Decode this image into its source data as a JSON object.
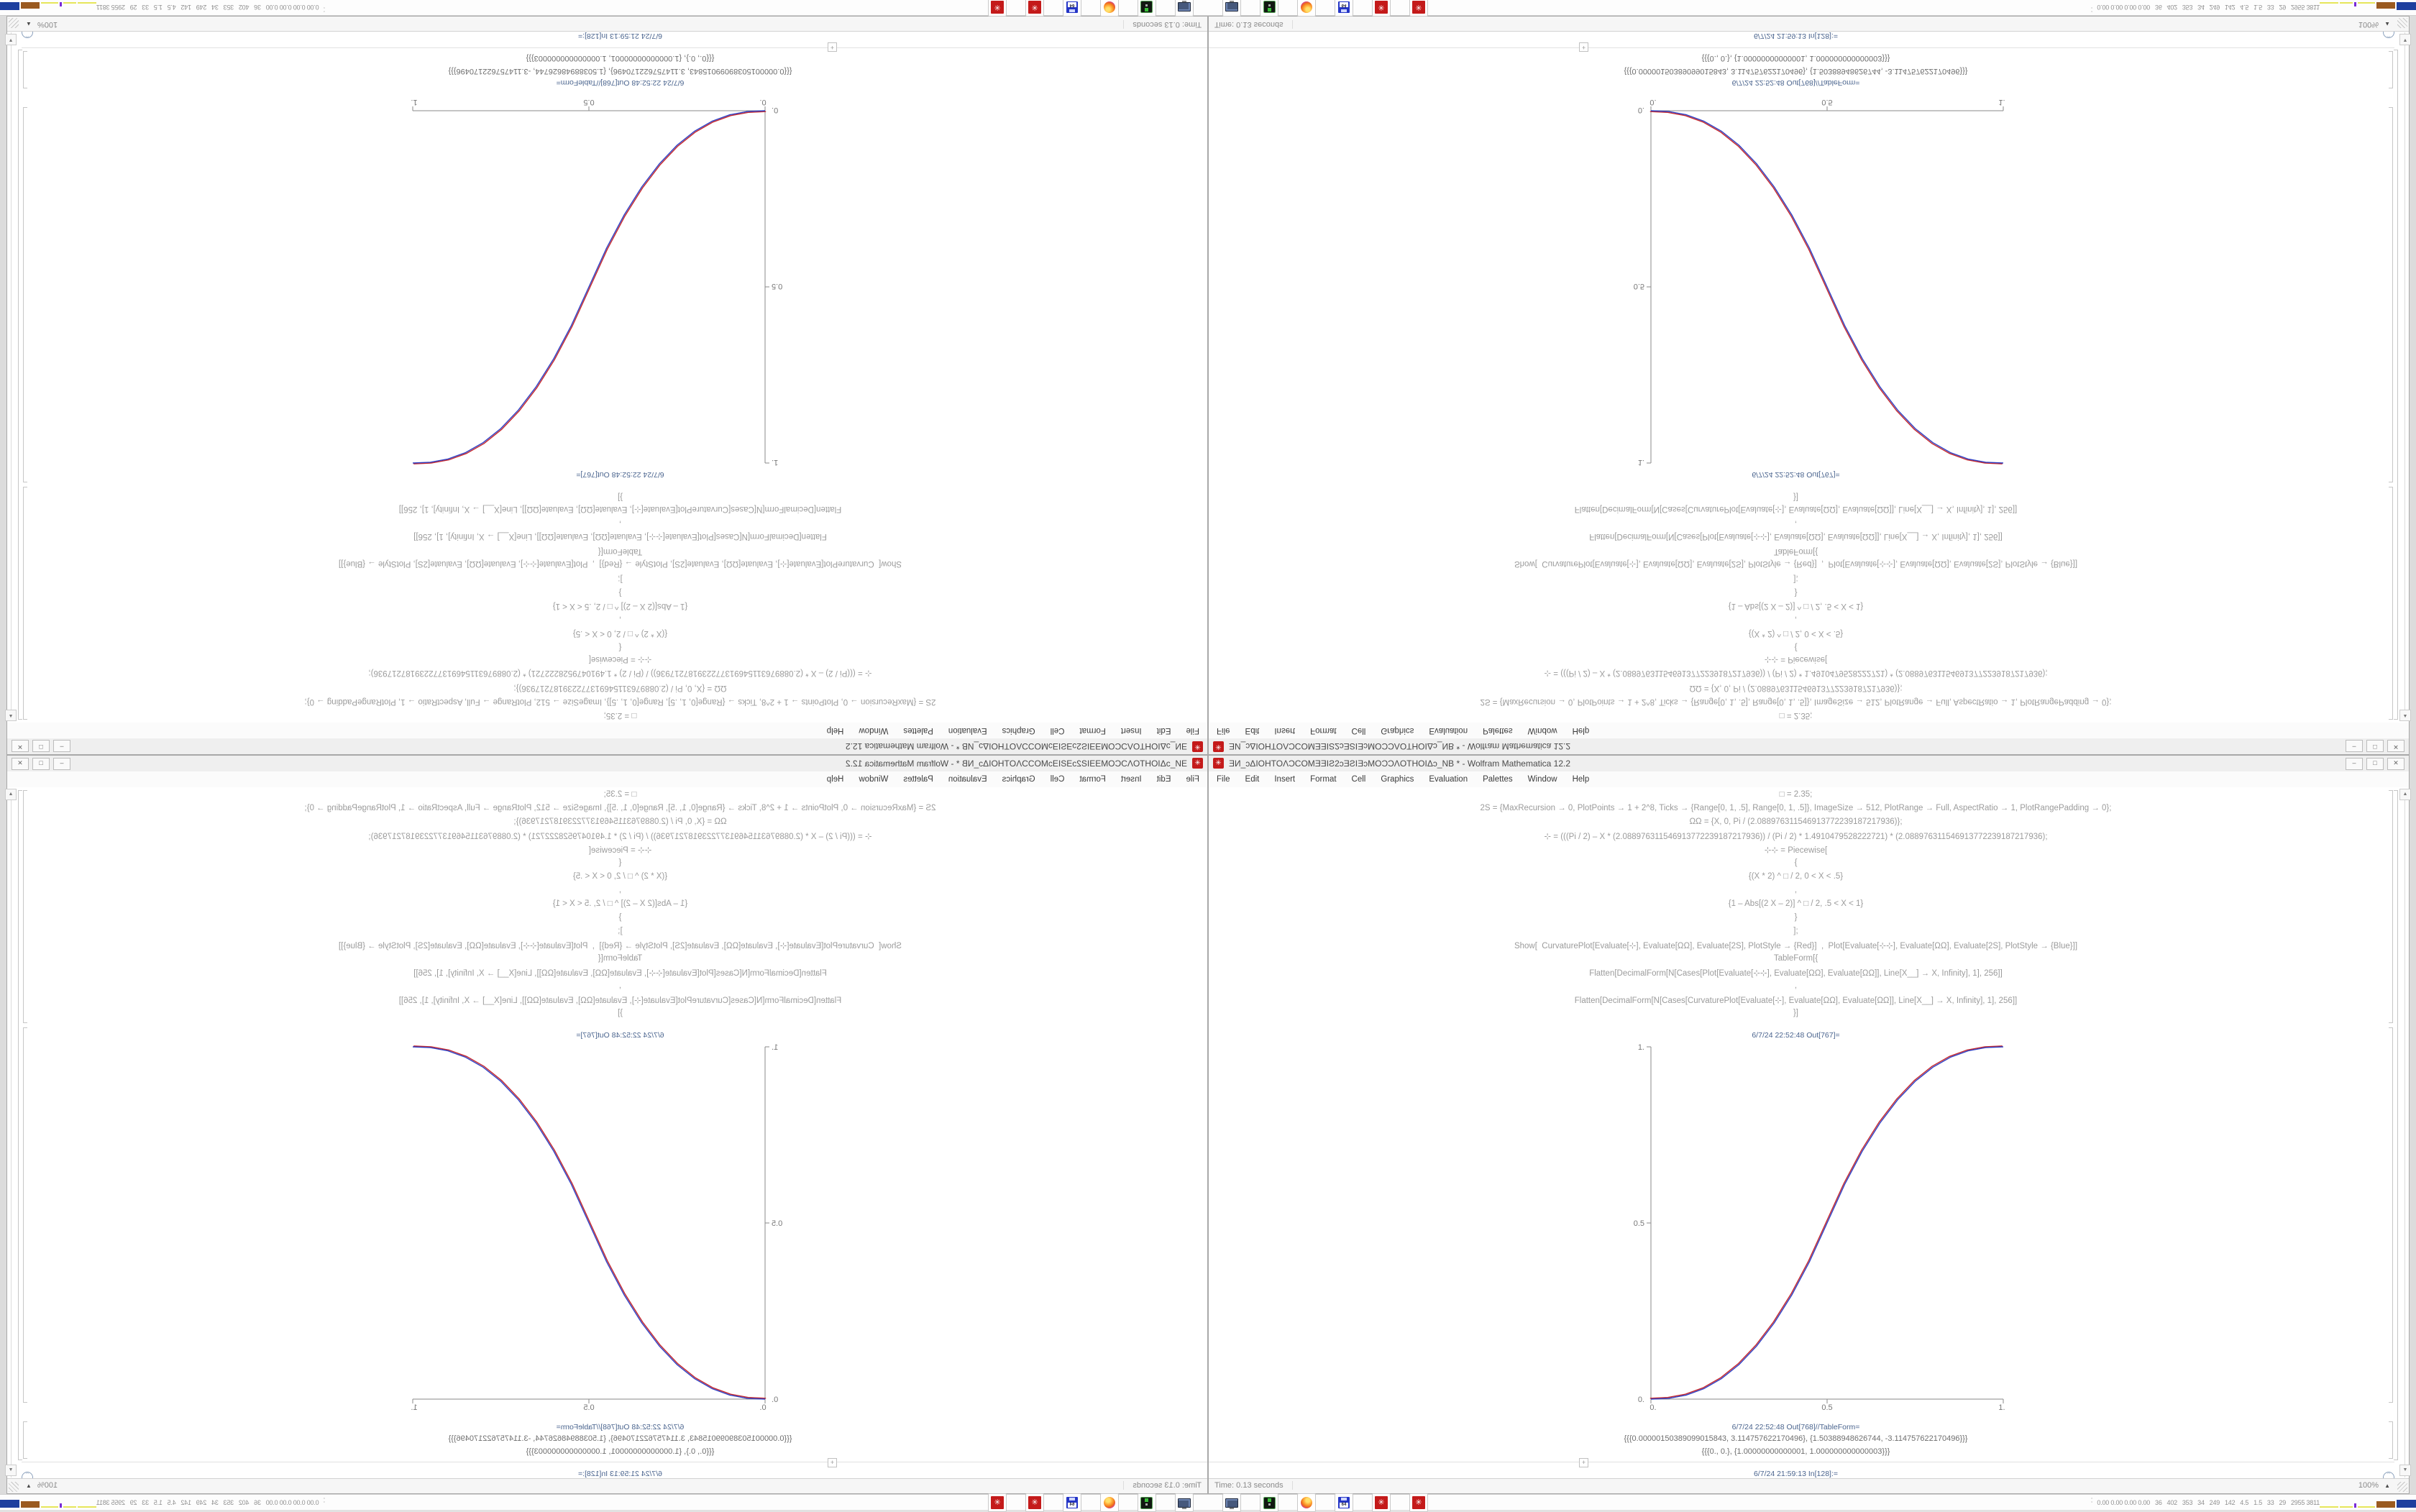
{
  "window": {
    "title": "ƎИ_ɔΔIOHTOΛƆCOMƎƎIƧ2ɔƎƧIƎɔMOƆƆΛOTHOIΔɔ_NB * - Wolfram Mathematica 12.2",
    "app_icon_glyph": "✳",
    "menu_items": [
      "File",
      "Edit",
      "Insert",
      "Format",
      "Cell",
      "Graphics",
      "Evaluation",
      "Palettes",
      "Window",
      "Help"
    ],
    "buttons": {
      "minimize": "–",
      "maximize": "□",
      "close": "✕"
    },
    "notebook": {
      "input_lines": [
        "□ = 2.35;",
        "2S = {MaxRecursion → 0, PlotPoints → 1 + 2^8, Ticks → {Range[0, 1, .5], Range[0, 1, .5]}, ImageSize → 512, PlotRange → Full, AspectRatio → 1, PlotRangePadding → 0};",
        "ΩΩ = {X, 0, Pi / (2.088976311546913772239187217936)};",
        "⊹ = (((Pi / 2) – X * (2.088976311546913772239187217936)) / (Pi / 2) * 1.4910479528222721) * (2.088976311546913772239187217936);",
        "⊹⊹ = Piecewise[",
        "{",
        "{(X * 2) ^ □ / 2, 0 < X < .5}",
        ",",
        "{1 – Abs[(2 X – 2)] ^ □ / 2, .5 < X < 1}",
        "}",
        "];",
        "Show[  CurvaturePlot[Evaluate[⊹], Evaluate[ΩΩ], Evaluate[2S], PlotStyle → {Red}]  ,  Plot[Evaluate[⊹⊹], Evaluate[ΩΩ], Evaluate[2S], PlotStyle → {Blue}]]",
        "TableForm[{",
        "Flatten[DecimalForm[N[Cases[Plot[Evaluate[⊹⊹], Evaluate[ΩΩ], Evaluate[ΩΩ]], Line[X__] → X, Infinity], 1], 256]]",
        ",",
        "Flatten[DecimalForm[N[Cases[CurvaturePlot[Evaluate[⊹], Evaluate[ΩΩ], Evaluate[ΩΩ]], Line[X__] → X, Infinity], 1], 256]]",
        "}]"
      ],
      "out_plot_label": "6/7/24 22:52:48 Out[767]=",
      "out_table_label": "6/7/24 22:52:48 Out[768]//TableForm=",
      "table_rows": [
        "{{{0.00000150389099015843, 3.114757622170496}, {1.50388948626744, -3.114757622170496}}}",
        "{{{0., 0.}, {1.00000000000001, 1.000000000000003}}}",
        ""
      ],
      "in_label": "6/7/24 21:59:13 In[128]:=",
      "insert_plus": "+",
      "scroll_up_glyph": "▲",
      "scroll_down_glyph": "▼",
      "elision_glyph": "ˇˇ"
    },
    "status": {
      "time": "Time: 0.13 seconds",
      "zoom": "100%",
      "zoom_arrow": "▲"
    }
  },
  "taskbar": {
    "icons": [
      {
        "name": "display-settings-icon",
        "kind": "monitor",
        "label": ""
      },
      {
        "name": "terminal-icon",
        "kind": "terminal",
        "label": ""
      },
      {
        "name": "firefox-icon",
        "kind": "firefox",
        "label": ""
      },
      {
        "name": "floppy-64-icon",
        "kind": "floppy",
        "label": "64"
      },
      {
        "name": "mathematica-icon",
        "kind": "mathematica",
        "label": "✳"
      },
      {
        "name": "mathematica-icon",
        "kind": "mathematica",
        "label": "✳"
      }
    ],
    "updown_glyphs": [
      "ˆ",
      "ˇ"
    ],
    "monitor_text": "0.00 0.00 0.00 0.00   36   402   353   34   249   142   4.5   1.5   33   29   2955 3811",
    "graph_segments": [
      {
        "color": "#e6e65a",
        "w": 26,
        "h": 2
      },
      {
        "color": "#e6e65a",
        "w": 18,
        "h": 2
      },
      {
        "color": "#7a2bd6",
        "w": 3,
        "h": 6
      },
      {
        "color": "#e6e65a",
        "w": 24,
        "h": 2
      },
      {
        "color": "#9a5a20",
        "w": 26,
        "h": 9
      },
      {
        "color": "#1e3f9e",
        "w": 28,
        "h": 11
      },
      {
        "color": "#9a5a20",
        "w": 22,
        "h": 9
      },
      {
        "color": "#44bb44",
        "w": 14,
        "h": 2
      },
      {
        "color": "#44bb44",
        "w": 20,
        "h": 3
      }
    ]
  },
  "chart_data": {
    "type": "line",
    "title": "6/7/24 22:52:48 Out[767]=",
    "xlabel": "",
    "ylabel": "",
    "xlim": [
      0,
      1
    ],
    "ylim": [
      0,
      1
    ],
    "x_ticks": [
      "0.",
      "0.5",
      "1."
    ],
    "y_ticks": [
      "1.",
      "0.5",
      "0."
    ],
    "grid": false,
    "legend_position": "none",
    "series": [
      {
        "name": "CurvaturePlot (Red)",
        "color": "#c4262c",
        "points": [
          [
            0,
            0
          ],
          [
            0.05,
            0.0022
          ],
          [
            0.1,
            0.0114
          ],
          [
            0.15,
            0.0295
          ],
          [
            0.2,
            0.058
          ],
          [
            0.25,
            0.098
          ],
          [
            0.3,
            0.1506
          ],
          [
            0.35,
            0.2163
          ],
          [
            0.4,
            0.2959
          ],
          [
            0.45,
            0.3903
          ],
          [
            0.5,
            0.5
          ],
          [
            0.55,
            0.6097
          ],
          [
            0.6,
            0.7041
          ],
          [
            0.65,
            0.7837
          ],
          [
            0.7,
            0.8494
          ],
          [
            0.75,
            0.902
          ],
          [
            0.8,
            0.942
          ],
          [
            0.85,
            0.9705
          ],
          [
            0.9,
            0.9886
          ],
          [
            0.95,
            0.9978
          ],
          [
            1,
            1
          ]
        ]
      },
      {
        "name": "Plot (Blue)",
        "color": "#2d3fc4",
        "points": [
          [
            0,
            0
          ],
          [
            0.05,
            0.0022
          ],
          [
            0.1,
            0.0114
          ],
          [
            0.15,
            0.0295
          ],
          [
            0.2,
            0.058
          ],
          [
            0.25,
            0.098
          ],
          [
            0.3,
            0.1506
          ],
          [
            0.35,
            0.2163
          ],
          [
            0.4,
            0.2959
          ],
          [
            0.45,
            0.3903
          ],
          [
            0.5,
            0.5
          ],
          [
            0.55,
            0.6097
          ],
          [
            0.6,
            0.7041
          ],
          [
            0.65,
            0.7837
          ],
          [
            0.7,
            0.8494
          ],
          [
            0.75,
            0.902
          ],
          [
            0.8,
            0.942
          ],
          [
            0.85,
            0.9705
          ],
          [
            0.9,
            0.9886
          ],
          [
            0.95,
            0.9978
          ],
          [
            1,
            1
          ]
        ]
      }
    ]
  },
  "quadrants": [
    {
      "id": "top-left",
      "transform": "rotate-180"
    },
    {
      "id": "top-right",
      "transform": "flip-vertical"
    },
    {
      "id": "bottom-left",
      "transform": "flip-horizontal"
    },
    {
      "id": "bottom-right",
      "transform": "none"
    }
  ]
}
